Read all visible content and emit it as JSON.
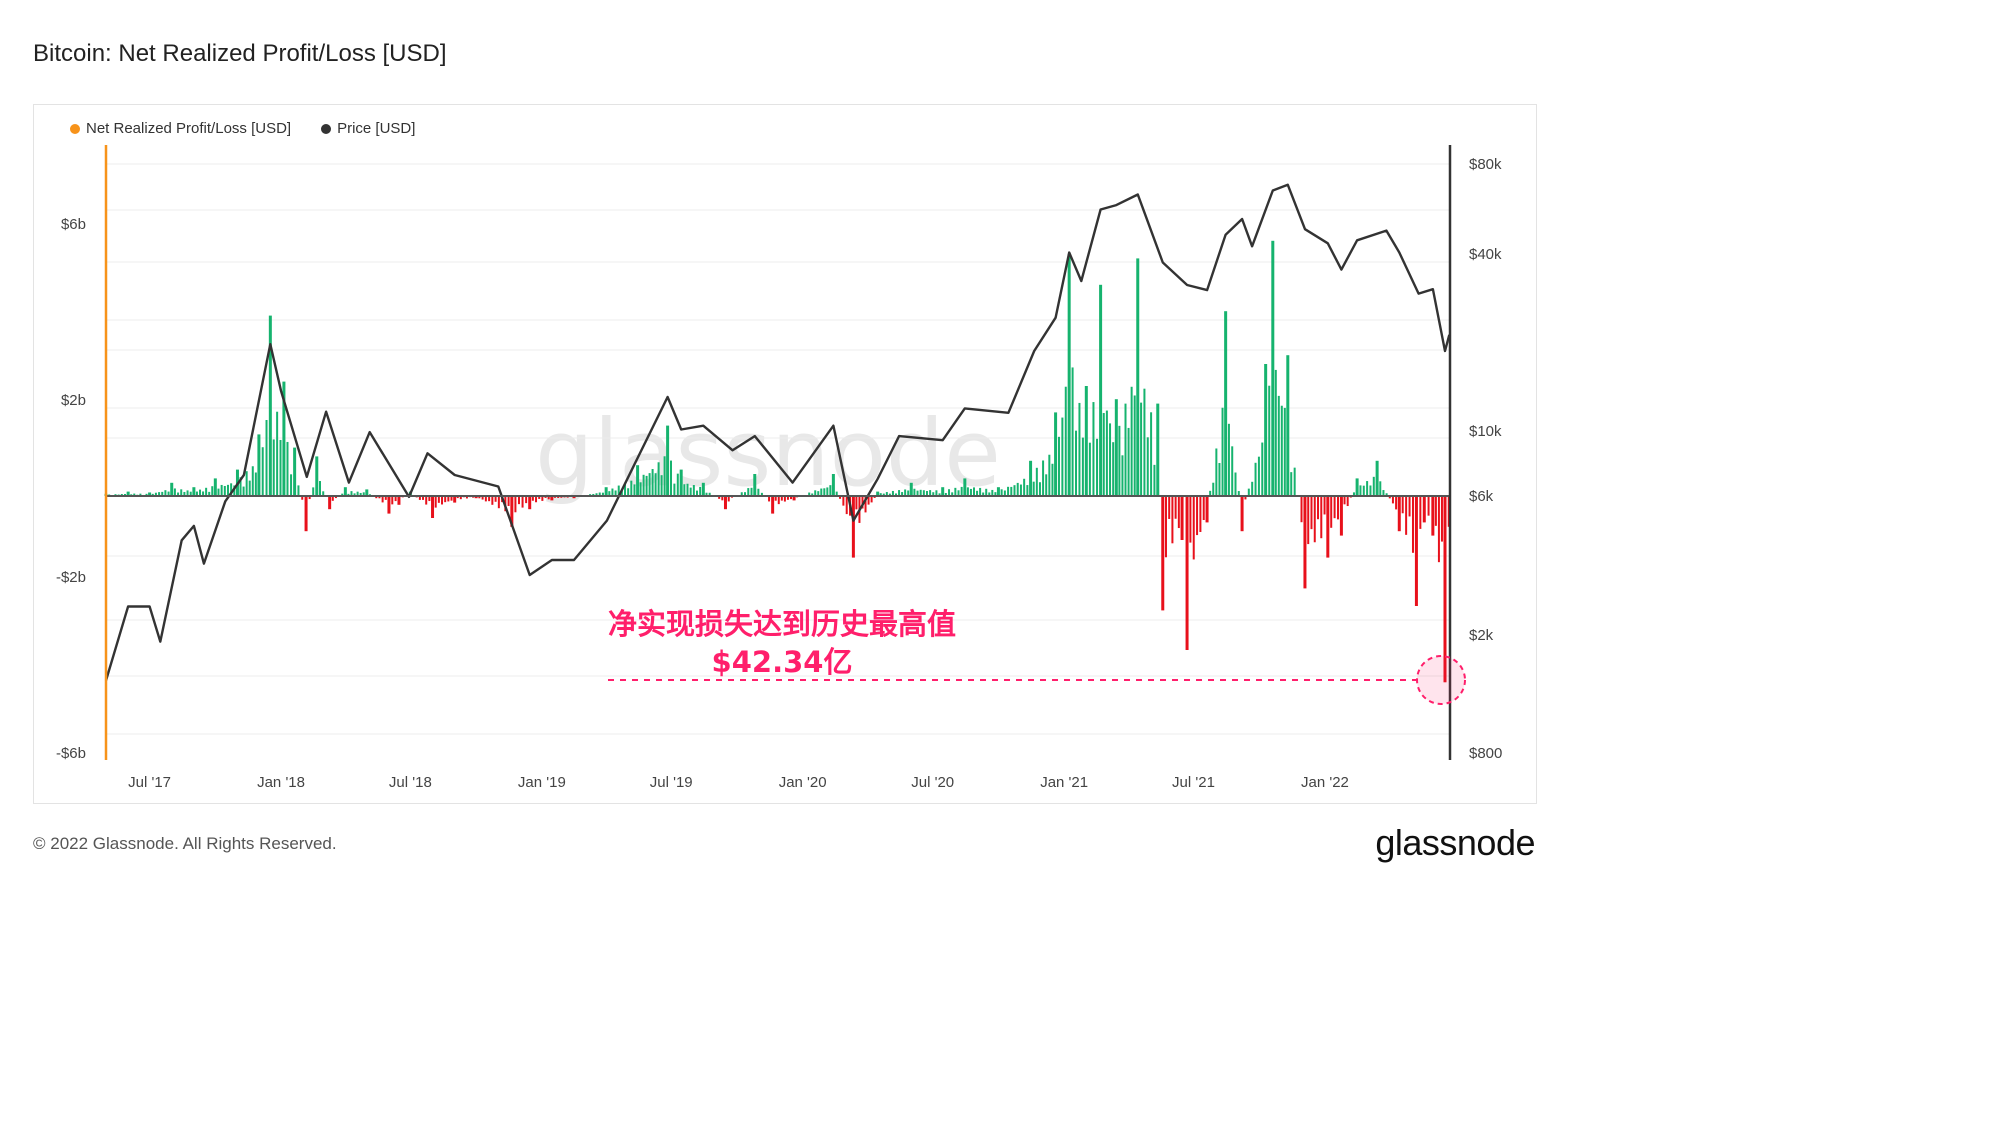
{
  "title": "Bitcoin: Net Realized Profit/Loss [USD]",
  "legend": [
    {
      "label": "Net Realized Profit/Loss [USD]",
      "color": "#f7931a"
    },
    {
      "label": "Price [USD]",
      "color": "#333333"
    }
  ],
  "watermark": "glassnode",
  "footer": "© 2022 Glassnode. All Rights Reserved.",
  "brand": "glassnode",
  "annotation": {
    "line1": "净实现损失达到历史最高值",
    "line2": "$42.34亿"
  },
  "colors": {
    "profit": "#16b36e",
    "loss": "#e8101b",
    "price": "#333333",
    "accent": "#f7931a",
    "annotation": "#ff1f6b"
  },
  "chart_data": {
    "type": "bar",
    "title": "Bitcoin: Net Realized Profit/Loss [USD]",
    "x_ticks": [
      "Jul '17",
      "Jan '18",
      "Jul '18",
      "Jan '19",
      "Jul '19",
      "Jan '20",
      "Jul '20",
      "Jan '21",
      "Jul '21",
      "Jan '22"
    ],
    "y_left_ticks": [
      "$6b",
      "$2b",
      "-$2b",
      "-$6b"
    ],
    "y_left_range": [
      -6,
      6
    ],
    "y_right_ticks": [
      "$80k",
      "$40k",
      "$10k",
      "$6k",
      "$2k",
      "$800"
    ],
    "y_right_scale": "log",
    "y_right_range": [
      800,
      80000
    ],
    "grid": true,
    "legend_position": "top-left",
    "series": [
      {
        "name": "Net Realized Profit/Loss [USD]",
        "unit": "billion USD",
        "points": [
          [
            "2017-05-01",
            0.05
          ],
          [
            "2017-06-01",
            0.1
          ],
          [
            "2017-07-01",
            0.08
          ],
          [
            "2017-08-01",
            0.3
          ],
          [
            "2017-09-01",
            0.2
          ],
          [
            "2017-10-01",
            0.4
          ],
          [
            "2017-11-01",
            0.6
          ],
          [
            "2017-12-01",
            1.4
          ],
          [
            "2017-12-17",
            4.1
          ],
          [
            "2018-01-05",
            2.6
          ],
          [
            "2018-01-20",
            1.1
          ],
          [
            "2018-02-05",
            -0.8
          ],
          [
            "2018-02-20",
            0.9
          ],
          [
            "2018-03-10",
            -0.3
          ],
          [
            "2018-04-01",
            0.2
          ],
          [
            "2018-05-01",
            0.15
          ],
          [
            "2018-06-01",
            -0.4
          ],
          [
            "2018-06-15",
            -0.2
          ],
          [
            "2018-07-01",
            0.1
          ],
          [
            "2018-08-01",
            -0.5
          ],
          [
            "2018-09-01",
            -0.15
          ],
          [
            "2018-10-01",
            -0.05
          ],
          [
            "2018-11-20",
            -0.7
          ],
          [
            "2018-12-15",
            -0.3
          ],
          [
            "2019-01-15",
            -0.1
          ],
          [
            "2019-02-15",
            -0.05
          ],
          [
            "2019-04-01",
            0.2
          ],
          [
            "2019-05-15",
            0.7
          ],
          [
            "2019-06-26",
            1.6
          ],
          [
            "2019-07-15",
            0.6
          ],
          [
            "2019-08-15",
            0.3
          ],
          [
            "2019-09-15",
            -0.3
          ],
          [
            "2019-10-26",
            0.5
          ],
          [
            "2019-11-20",
            -0.4
          ],
          [
            "2019-12-20",
            -0.1
          ],
          [
            "2020-02-13",
            0.5
          ],
          [
            "2020-03-12",
            -1.4
          ],
          [
            "2020-04-15",
            0.1
          ],
          [
            "2020-06-01",
            0.3
          ],
          [
            "2020-07-15",
            0.2
          ],
          [
            "2020-08-15",
            0.4
          ],
          [
            "2020-10-01",
            0.2
          ],
          [
            "2020-11-15",
            0.8
          ],
          [
            "2020-12-20",
            1.9
          ],
          [
            "2021-01-08",
            5.5
          ],
          [
            "2021-02-01",
            2.5
          ],
          [
            "2021-02-21",
            4.8
          ],
          [
            "2021-03-15",
            2.2
          ],
          [
            "2021-04-14",
            5.4
          ],
          [
            "2021-05-12",
            2.1
          ],
          [
            "2021-05-19",
            -2.6
          ],
          [
            "2021-06-15",
            -1.0
          ],
          [
            "2021-06-22",
            -3.5
          ],
          [
            "2021-07-20",
            -0.6
          ],
          [
            "2021-08-15",
            4.2
          ],
          [
            "2021-09-07",
            -0.8
          ],
          [
            "2021-10-10",
            3.0
          ],
          [
            "2021-10-20",
            5.8
          ],
          [
            "2021-11-10",
            3.2
          ],
          [
            "2021-12-04",
            -2.1
          ],
          [
            "2022-01-05",
            -1.4
          ],
          [
            "2022-01-24",
            -0.9
          ],
          [
            "2022-02-15",
            0.4
          ],
          [
            "2022-03-15",
            0.8
          ],
          [
            "2022-04-15",
            -0.8
          ],
          [
            "2022-05-09",
            -2.5
          ],
          [
            "2022-05-20",
            -0.6
          ],
          [
            "2022-06-01",
            -0.9
          ],
          [
            "2022-06-18",
            -4.234
          ],
          [
            "2022-06-24",
            -0.7
          ]
        ]
      },
      {
        "name": "Price [USD]",
        "unit": "USD",
        "points": [
          [
            "2017-05-01",
            1400
          ],
          [
            "2017-06-01",
            2500
          ],
          [
            "2017-07-01",
            2500
          ],
          [
            "2017-07-16",
            1900
          ],
          [
            "2017-08-15",
            4200
          ],
          [
            "2017-09-01",
            4700
          ],
          [
            "2017-09-15",
            3500
          ],
          [
            "2017-10-15",
            5700
          ],
          [
            "2017-11-10",
            7000
          ],
          [
            "2017-12-17",
            19500
          ],
          [
            "2018-01-01",
            13500
          ],
          [
            "2018-02-06",
            6900
          ],
          [
            "2018-03-05",
            11500
          ],
          [
            "2018-04-06",
            6600
          ],
          [
            "2018-05-05",
            9800
          ],
          [
            "2018-06-29",
            5900
          ],
          [
            "2018-07-25",
            8300
          ],
          [
            "2018-09-01",
            7000
          ],
          [
            "2018-11-01",
            6400
          ],
          [
            "2018-12-15",
            3200
          ],
          [
            "2019-01-15",
            3600
          ],
          [
            "2019-02-15",
            3600
          ],
          [
            "2019-04-02",
            4900
          ],
          [
            "2019-05-15",
            8000
          ],
          [
            "2019-06-26",
            12900
          ],
          [
            "2019-07-15",
            10000
          ],
          [
            "2019-08-15",
            10300
          ],
          [
            "2019-09-25",
            8500
          ],
          [
            "2019-10-26",
            9500
          ],
          [
            "2019-12-18",
            6600
          ],
          [
            "2020-02-13",
            10300
          ],
          [
            "2020-03-12",
            4900
          ],
          [
            "2020-04-15",
            6800
          ],
          [
            "2020-05-15",
            9500
          ],
          [
            "2020-07-15",
            9200
          ],
          [
            "2020-08-15",
            11800
          ],
          [
            "2020-10-15",
            11400
          ],
          [
            "2020-11-20",
            18500
          ],
          [
            "2020-12-20",
            24000
          ],
          [
            "2021-01-08",
            40000
          ],
          [
            "2021-01-25",
            32000
          ],
          [
            "2021-02-21",
            56000
          ],
          [
            "2021-03-15",
            58000
          ],
          [
            "2021-04-14",
            63000
          ],
          [
            "2021-05-19",
            37000
          ],
          [
            "2021-06-22",
            31000
          ],
          [
            "2021-07-20",
            29800
          ],
          [
            "2021-08-15",
            46000
          ],
          [
            "2021-09-07",
            52000
          ],
          [
            "2021-09-21",
            42000
          ],
          [
            "2021-10-20",
            65000
          ],
          [
            "2021-11-10",
            68000
          ],
          [
            "2021-12-04",
            48000
          ],
          [
            "2022-01-05",
            43000
          ],
          [
            "2022-01-24",
            35000
          ],
          [
            "2022-02-15",
            44000
          ],
          [
            "2022-03-28",
            47500
          ],
          [
            "2022-04-15",
            40000
          ],
          [
            "2022-05-12",
            29000
          ],
          [
            "2022-06-01",
            30000
          ],
          [
            "2022-06-18",
            18500
          ],
          [
            "2022-06-24",
            21000
          ]
        ]
      }
    ]
  }
}
